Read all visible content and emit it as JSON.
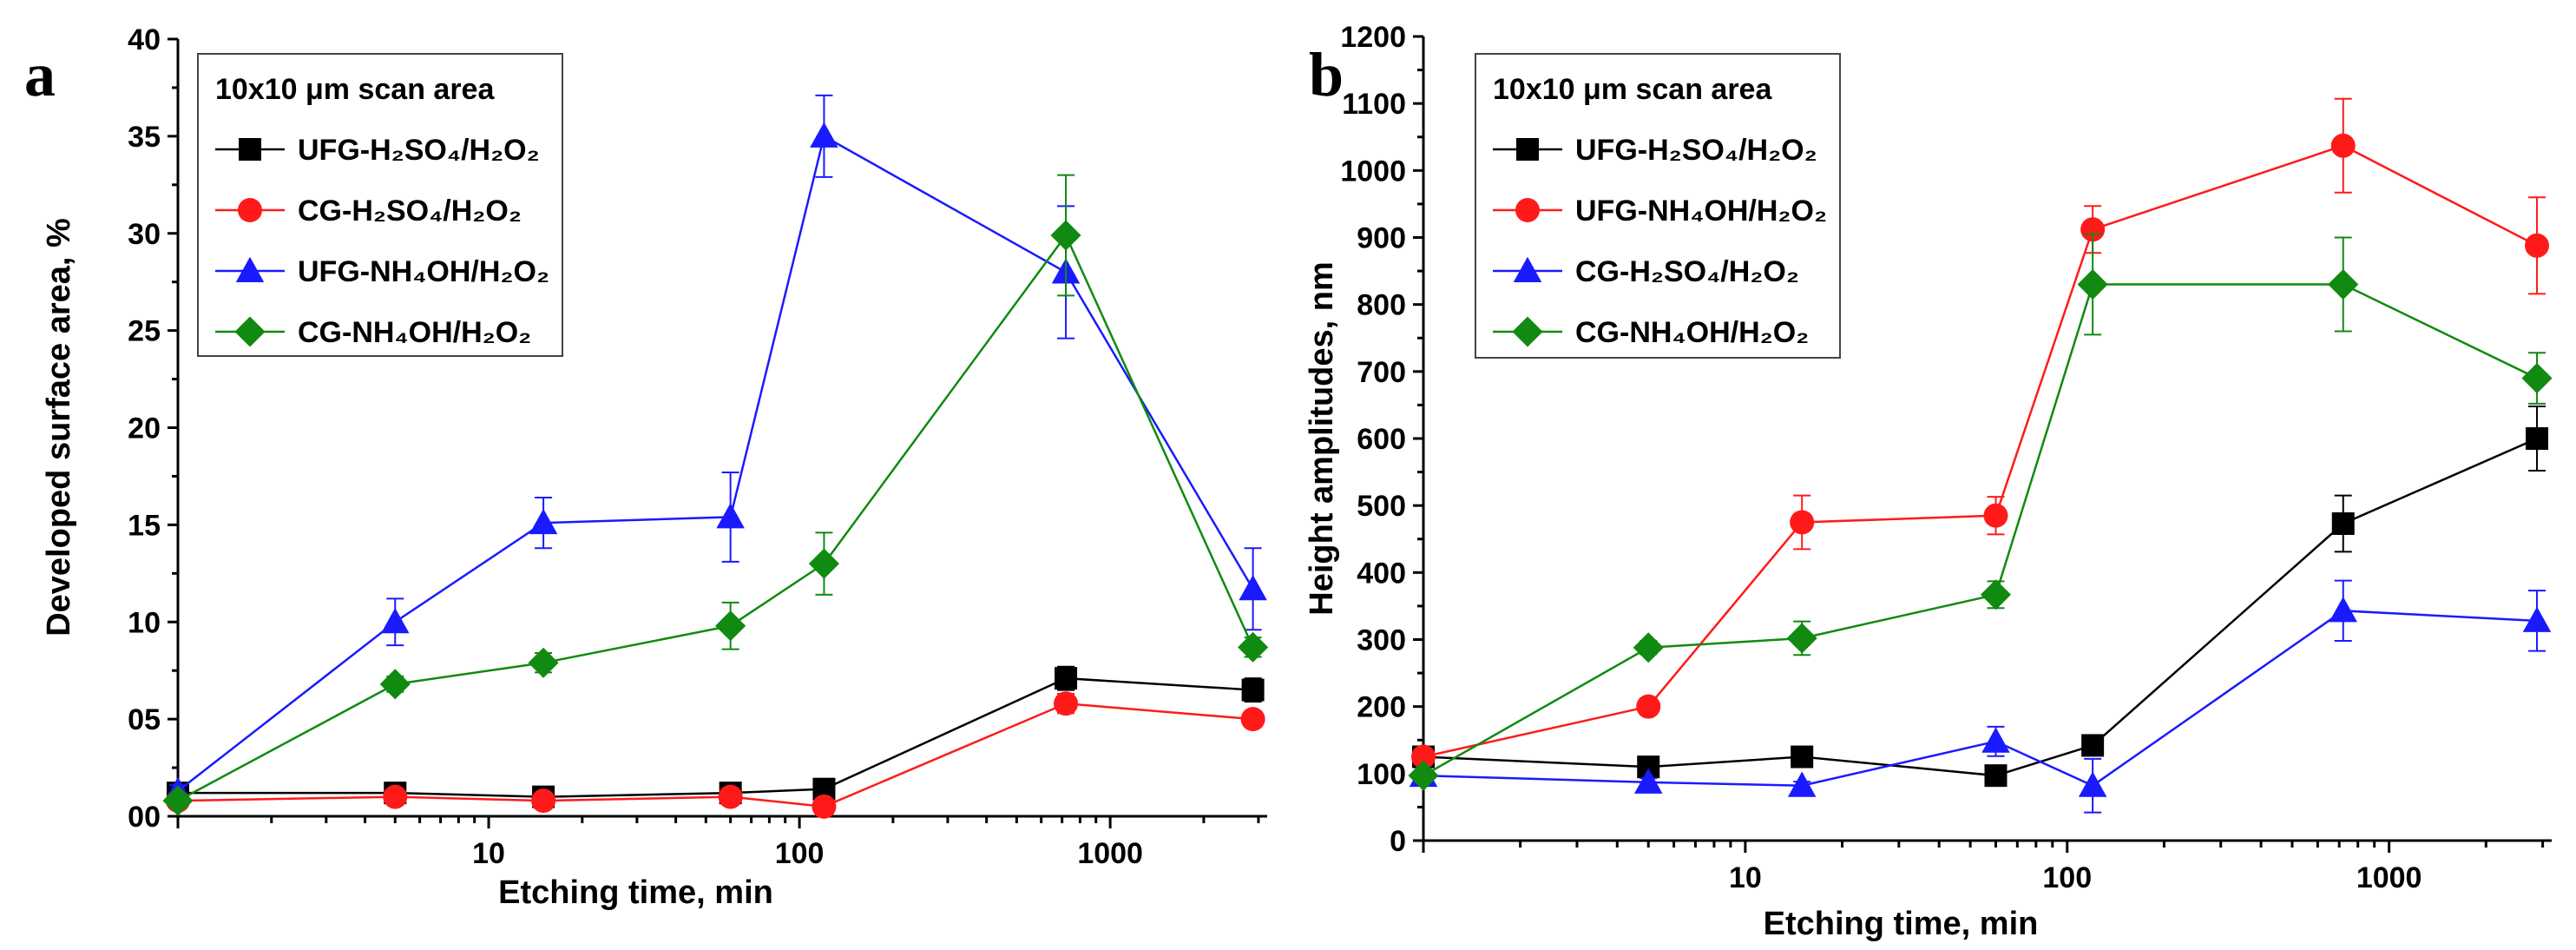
{
  "colors": {
    "black": "#000000",
    "red": "#ff1a1a",
    "blue": "#1a1aff",
    "green": "#108a10"
  },
  "chart_data": [
    {
      "panel": "a",
      "type": "line",
      "xscale": "log",
      "xlim": [
        1,
        3200
      ],
      "ylim": [
        0,
        40
      ],
      "xlabel": "Etching time, min",
      "ylabel": "Developed surface area, %",
      "x_ticks": [
        10,
        100,
        1000
      ],
      "x_tick_labels": [
        "10",
        "100",
        "1000"
      ],
      "y_ticks": [
        0,
        5,
        10,
        15,
        20,
        25,
        30,
        35,
        40
      ],
      "y_tick_labels": [
        "00",
        "05",
        "10",
        "15",
        "20",
        "25",
        "30",
        "35",
        "40"
      ],
      "legend_title": "10x10 μm scan area",
      "legend_position": "top-left",
      "series": [
        {
          "name": "UFG-H₂SO₄/H₂O₂",
          "color": "#000000",
          "marker": "square",
          "x": [
            1,
            5,
            15,
            60,
            120,
            720,
            2880
          ],
          "y": [
            1.2,
            1.2,
            1.0,
            1.2,
            1.4,
            7.1,
            6.5
          ],
          "err": [
            0.3,
            0.3,
            0.3,
            0.3,
            0.4,
            0.6,
            0.6
          ]
        },
        {
          "name": "CG-H₂SO₄/H₂O₂",
          "color": "#ff1a1a",
          "marker": "circle",
          "x": [
            1,
            5,
            15,
            60,
            120,
            720,
            2880
          ],
          "y": [
            0.8,
            1.0,
            0.8,
            1.0,
            0.5,
            5.8,
            5.0
          ],
          "err": [
            0.2,
            0.2,
            0.2,
            0.2,
            0.2,
            0.5,
            0.4
          ]
        },
        {
          "name": "UFG-NH₄OH/H₂O₂",
          "color": "#1a1aff",
          "marker": "triangle",
          "x": [
            1,
            5,
            15,
            60,
            120,
            720,
            2880
          ],
          "y": [
            1.3,
            10.0,
            15.1,
            15.4,
            35.0,
            28.0,
            11.7
          ],
          "err": [
            0.3,
            1.2,
            1.3,
            2.3,
            2.1,
            3.4,
            2.1
          ]
        },
        {
          "name": "CG-NH₄OH/H₂O₂",
          "color": "#108a10",
          "marker": "diamond",
          "x": [
            1,
            5,
            15,
            60,
            120,
            720,
            2880
          ],
          "y": [
            0.8,
            6.8,
            7.9,
            9.8,
            13.0,
            29.9,
            8.7
          ],
          "err": [
            0.2,
            0.4,
            0.5,
            1.2,
            1.6,
            3.1,
            0.5
          ]
        }
      ]
    },
    {
      "panel": "b",
      "type": "line",
      "xscale": "log",
      "xlim": [
        1,
        3200
      ],
      "ylim": [
        0,
        1200
      ],
      "xlabel": "Etching time, min",
      "ylabel": "Height amplitudes, nm",
      "x_ticks": [
        10,
        100,
        1000
      ],
      "x_tick_labels": [
        "10",
        "100",
        "1000"
      ],
      "y_ticks": [
        0,
        100,
        200,
        300,
        400,
        500,
        600,
        700,
        800,
        900,
        1000,
        1100,
        1200
      ],
      "y_tick_labels": [
        "0",
        "100",
        "200",
        "300",
        "400",
        "500",
        "600",
        "700",
        "800",
        "900",
        "1000",
        "1100",
        "1200"
      ],
      "legend_title": "10x10 μm scan area",
      "legend_position": "top-left",
      "series": [
        {
          "name": "UFG-H₂SO₄/H₂O₂",
          "color": "#000000",
          "marker": "square",
          "x": [
            1,
            5,
            15,
            60,
            120,
            720,
            2880
          ],
          "y": [
            125,
            110,
            125,
            97,
            142,
            473,
            600
          ],
          "err": [
            8,
            8,
            8,
            6,
            10,
            42,
            48
          ]
        },
        {
          "name": "UFG-NH₄OH/H₂O₂",
          "color": "#ff1a1a",
          "marker": "circle",
          "x": [
            1,
            5,
            15,
            60,
            120,
            720,
            2880
          ],
          "y": [
            125,
            200,
            475,
            485,
            912,
            1037,
            888
          ],
          "err": [
            8,
            12,
            40,
            28,
            35,
            70,
            72
          ]
        },
        {
          "name": "CG-H₂SO₄/H₂O₂",
          "color": "#1a1aff",
          "marker": "triangle",
          "x": [
            1,
            5,
            15,
            60,
            120,
            720,
            2880
          ],
          "y": [
            97,
            87,
            82,
            148,
            82,
            343,
            328
          ],
          "err": [
            6,
            6,
            6,
            22,
            40,
            45,
            45
          ]
        },
        {
          "name": "CG-NH₄OH/H₂O₂",
          "color": "#108a10",
          "marker": "diamond",
          "x": [
            1,
            5,
            15,
            60,
            120,
            720,
            2880
          ],
          "y": [
            97,
            288,
            302,
            367,
            830,
            830,
            690
          ],
          "err": [
            6,
            10,
            25,
            20,
            75,
            70,
            38
          ]
        }
      ]
    }
  ]
}
